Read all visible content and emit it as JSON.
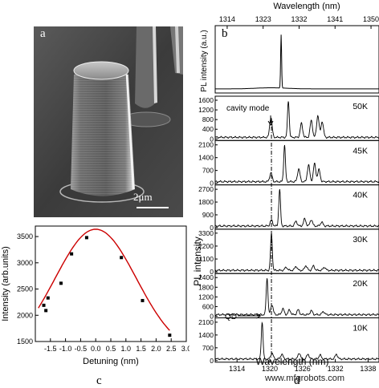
{
  "panels": {
    "a": "a",
    "b": "b",
    "c": "c",
    "d": "d"
  },
  "sem": {
    "scale_label": "2μm"
  },
  "watermark": "www.mfgrobots.com",
  "chart_data": [
    {
      "type": "scatter",
      "panel": "c",
      "xlabel": "Detuning (nm)",
      "ylabel": "Intensity (arb.units)",
      "xlim": [
        -2,
        3
      ],
      "ylim": [
        1500,
        3700
      ],
      "xticks": [
        -1.5,
        -1.0,
        -0.5,
        0.0,
        0.5,
        1.0,
        1.5,
        2.0,
        2.5,
        3.0
      ],
      "xticklabels": [
        "-1.5",
        "-1.0",
        "-0.5",
        "0.0",
        "0.5",
        "1.0",
        "1.5",
        "2.0",
        "2.5",
        "3.0"
      ],
      "yticks": [
        1500,
        2000,
        2500,
        3000,
        3500
      ],
      "yticklabels": [
        "1500",
        "2000",
        "2500",
        "3000",
        "3500"
      ],
      "points": [
        {
          "x": -1.72,
          "y": 2190
        },
        {
          "x": -1.65,
          "y": 2090
        },
        {
          "x": -1.58,
          "y": 2330
        },
        {
          "x": -1.15,
          "y": 2610
        },
        {
          "x": -0.8,
          "y": 3170
        },
        {
          "x": -0.3,
          "y": 3480
        },
        {
          "x": 0.85,
          "y": 3100
        },
        {
          "x": 1.55,
          "y": 2280
        },
        {
          "x": 2.45,
          "y": 1620
        }
      ],
      "fit": {
        "type": "gaussian",
        "peak_x": 0.0,
        "peak_y": 3640,
        "baseline": 1250,
        "sigma": 1.35,
        "color": "#cc0000"
      }
    },
    {
      "type": "line",
      "panel": "b",
      "top_xlabel": "Wavelength (nm)",
      "top_xlim": [
        1311,
        1352
      ],
      "top_xticks": [
        1314,
        1323,
        1332,
        1341,
        1350
      ],
      "ylabel": "PL intensity (a.u.)",
      "peak_at": 1327.5
    },
    {
      "type": "line",
      "panel": "d",
      "xlabel": "Wavelength (nm)",
      "ylabel": "PL intensity",
      "xlim": [
        1310,
        1340
      ],
      "xticks": [
        1314,
        1320,
        1326,
        1332,
        1338
      ],
      "annotations": [
        "cavity mode",
        "QD"
      ],
      "cavity_mode_wavelength": 1320.3,
      "series": [
        {
          "name": "50K",
          "ymax": 1700,
          "yticks": [
            0,
            400,
            800,
            1200,
            1600
          ],
          "qd_peak": 1323.4,
          "extra_peaks": [
            [
              1320.2,
              0.5
            ],
            [
              1325.8,
              0.35
            ],
            [
              1327.6,
              0.42
            ],
            [
              1328.8,
              0.55
            ],
            [
              1329.6,
              0.4
            ]
          ]
        },
        {
          "name": "45K",
          "ymax": 2250,
          "yticks": [
            0,
            700,
            1400,
            2100
          ],
          "qd_peak": 1322.7,
          "extra_peaks": [
            [
              1320.2,
              0.22
            ],
            [
              1325.3,
              0.32
            ],
            [
              1327.1,
              0.42
            ],
            [
              1328.2,
              0.45
            ],
            [
              1329.0,
              0.3
            ]
          ]
        },
        {
          "name": "40K",
          "ymax": 2900,
          "yticks": [
            0,
            900,
            1800,
            2700
          ],
          "qd_peak": 1321.8,
          "extra_peaks": [
            [
              1320.3,
              0.15
            ],
            [
              1324.8,
              0.12
            ],
            [
              1326.4,
              0.18
            ],
            [
              1327.6,
              0.16
            ],
            [
              1329.5,
              0.1
            ]
          ]
        },
        {
          "name": "30K",
          "ymax": 3500,
          "yticks": [
            0,
            1100,
            2200,
            3300
          ],
          "qd_peak": 1320.3,
          "extra_peaks": [
            [
              1323.0,
              0.08
            ],
            [
              1324.8,
              0.1
            ],
            [
              1326.6,
              0.12
            ],
            [
              1328.0,
              0.11
            ],
            [
              1330.0,
              0.08
            ]
          ]
        },
        {
          "name": "20K",
          "ymax": 2550,
          "yticks": [
            0,
            600,
            1200,
            1800,
            2400
          ],
          "qd_peak": 1319.5,
          "extra_peaks": [
            [
              1320.4,
              0.25
            ],
            [
              1322.4,
              0.15
            ],
            [
              1323.6,
              0.12
            ],
            [
              1325.2,
              0.12
            ],
            [
              1327.6,
              0.1
            ],
            [
              1329.8,
              0.08
            ]
          ]
        },
        {
          "name": "10K",
          "ymax": 2250,
          "yticks": [
            0,
            700,
            1400,
            2100
          ],
          "qd_peak": 1318.6,
          "extra_peaks": [
            [
              1320.4,
              0.15
            ],
            [
              1322.2,
              0.12
            ],
            [
              1325.4,
              0.15
            ],
            [
              1327.0,
              0.12
            ],
            [
              1329.2,
              0.1
            ],
            [
              1332.2,
              0.12
            ]
          ]
        }
      ]
    }
  ]
}
